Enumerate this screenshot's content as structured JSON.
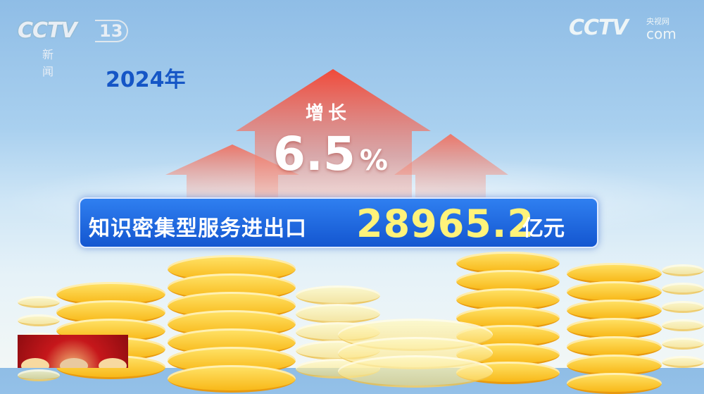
{
  "channel_logo": {
    "brand": "CCTV",
    "number": "13",
    "name": "新闻"
  },
  "watermark": {
    "brand": "CCTV",
    "cn": "央视网",
    "suffix": "com"
  },
  "year_label": "2024年",
  "growth": {
    "label": "增长",
    "value": "6.5",
    "unit": "%"
  },
  "banner": {
    "label": "知识密集型服务进出口",
    "value": "28965.2",
    "unit": "亿元"
  },
  "colors": {
    "banner": "#1d63dc",
    "value_text": "#fff37a",
    "arrow": "#f0614c",
    "year": "#1556c6"
  }
}
